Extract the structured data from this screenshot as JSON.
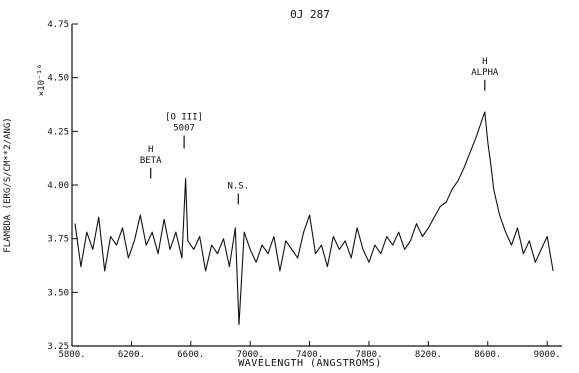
{
  "chart_data": {
    "type": "line",
    "title": "0J 287",
    "xlabel": "WAVELENGTH (ANGSTROMS)",
    "ylabel": "FLAMBDA (ERG/S/CM**2/ANG)",
    "y_multiplier_label": "×10⁻¹⁶",
    "xlim": [
      5800,
      9100
    ],
    "ylim": [
      3.25,
      4.75
    ],
    "x_ticks": [
      5800,
      6200,
      6600,
      7000,
      7400,
      7800,
      8200,
      8600,
      9000
    ],
    "x_tick_labels": [
      "5800.",
      "6200.",
      "6600.",
      "7000.",
      "7400.",
      "7800.",
      "8200.",
      "8600.",
      "9000."
    ],
    "y_ticks": [
      3.25,
      3.5,
      3.75,
      4.0,
      4.25,
      4.5,
      4.75
    ],
    "y_tick_labels": [
      "3.25",
      "3.50",
      "3.75",
      "4.00",
      "4.25",
      "4.50",
      "4.75"
    ],
    "grid": false,
    "series": [
      {
        "x": [
          5820,
          5860,
          5900,
          5940,
          5980,
          6020,
          6060,
          6100,
          6140,
          6180,
          6220,
          6260,
          6300,
          6340,
          6380,
          6420,
          6460,
          6500,
          6540,
          6565,
          6580,
          6620,
          6660,
          6700,
          6740,
          6780,
          6820,
          6860,
          6900,
          6925,
          6960,
          7000,
          7040,
          7080,
          7120,
          7160,
          7200,
          7240,
          7280,
          7320,
          7360,
          7400,
          7440,
          7480,
          7520,
          7560,
          7600,
          7640,
          7680,
          7720,
          7760,
          7800,
          7840,
          7880,
          7920,
          7960,
          8000,
          8040,
          8080,
          8120,
          8160,
          8200,
          8240,
          8280,
          8320,
          8360,
          8400,
          8440,
          8480,
          8520,
          8560,
          8580,
          8600,
          8620,
          8640,
          8680,
          8720,
          8760,
          8800,
          8840,
          8880,
          8920,
          8960,
          9000,
          9040
        ],
        "values": [
          3.82,
          3.62,
          3.78,
          3.7,
          3.85,
          3.6,
          3.76,
          3.72,
          3.8,
          3.66,
          3.74,
          3.86,
          3.72,
          3.78,
          3.68,
          3.84,
          3.7,
          3.78,
          3.66,
          4.03,
          3.74,
          3.7,
          3.76,
          3.6,
          3.72,
          3.68,
          3.75,
          3.62,
          3.8,
          3.35,
          3.78,
          3.7,
          3.64,
          3.72,
          3.68,
          3.76,
          3.6,
          3.74,
          3.7,
          3.66,
          3.78,
          3.86,
          3.68,
          3.72,
          3.62,
          3.76,
          3.7,
          3.74,
          3.66,
          3.8,
          3.7,
          3.64,
          3.72,
          3.68,
          3.76,
          3.72,
          3.78,
          3.7,
          3.74,
          3.82,
          3.76,
          3.8,
          3.85,
          3.9,
          3.92,
          3.98,
          4.02,
          4.08,
          4.15,
          4.22,
          4.3,
          4.34,
          4.2,
          4.1,
          3.98,
          3.86,
          3.78,
          3.72,
          3.8,
          3.68,
          3.74,
          3.64,
          3.7,
          3.76,
          3.6
        ]
      }
    ],
    "annotations": [
      {
        "lines": [
          "H",
          "BETA"
        ],
        "x": 6330,
        "tick_from": 4.03,
        "tick_to": 4.08
      },
      {
        "lines": [
          "[O III]",
          "5007"
        ],
        "x": 6555,
        "tick_from": 4.17,
        "tick_to": 4.23
      },
      {
        "lines": [
          "N.S."
        ],
        "x": 6920,
        "tick_from": 3.91,
        "tick_to": 3.96
      },
      {
        "lines": [
          "H",
          "ALPHA"
        ],
        "x": 8580,
        "tick_from": 4.44,
        "tick_to": 4.49
      }
    ]
  }
}
